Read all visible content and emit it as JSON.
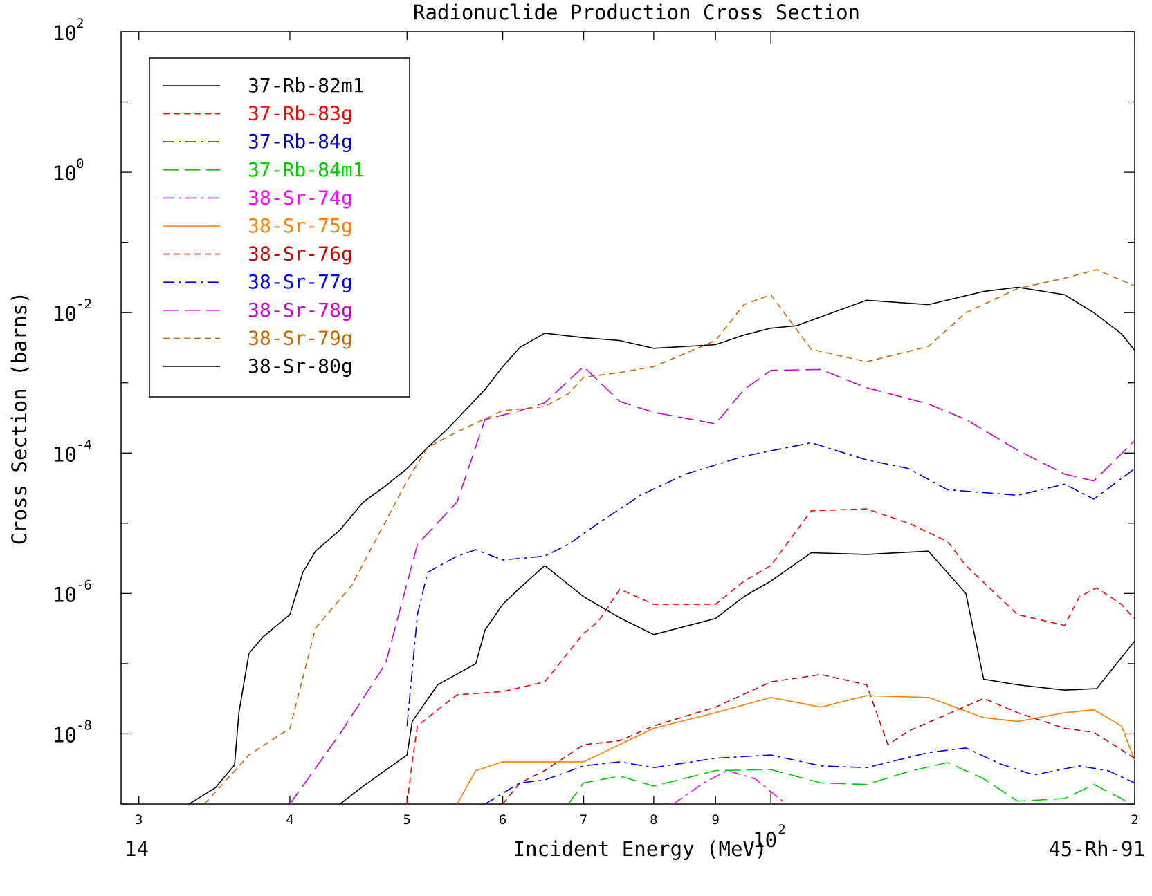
{
  "chart_data": {
    "type": "line",
    "title": "Radionuclide Production Cross Section",
    "xlabel": "Incident Energy (MeV)",
    "ylabel": "Cross Section (barns)",
    "x_scale": "log",
    "y_scale": "log",
    "xlim": [
      29,
      200
    ],
    "ylim": [
      1e-09,
      100
    ],
    "x_tick_labels": [
      {
        "value": 30,
        "label": "3"
      },
      {
        "value": 40,
        "label": "4"
      },
      {
        "value": 50,
        "label": "5"
      },
      {
        "value": 60,
        "label": "6"
      },
      {
        "value": 70,
        "label": "7"
      },
      {
        "value": 80,
        "label": "8"
      },
      {
        "value": 90,
        "label": "9"
      },
      {
        "value": 200,
        "label": "2"
      }
    ],
    "x_decade_label": {
      "value": 100,
      "base": "10",
      "exp": "2"
    },
    "y_tick_labels": [
      {
        "value": 100,
        "base": "10",
        "exp": "2"
      },
      {
        "value": 1,
        "base": "10",
        "exp": "0"
      },
      {
        "value": 0.01,
        "base": "10",
        "exp": "-2"
      },
      {
        "value": 0.0001,
        "base": "10",
        "exp": "-4"
      },
      {
        "value": 1e-06,
        "base": "10",
        "exp": "-6"
      },
      {
        "value": 1e-08,
        "base": "10",
        "exp": "-8"
      }
    ],
    "corner_left": "14",
    "corner_right": "45-Rh-91",
    "legend_position": "top-left",
    "series": [
      {
        "name": "37-Rb-82m1",
        "color": "#000000",
        "dash": "solid",
        "points": [
          [
            33,
            1e-09
          ],
          [
            34.7,
            1.7e-09
          ],
          [
            36,
            3.6e-09
          ],
          [
            36.3,
            2e-08
          ],
          [
            37,
            1.4e-07
          ],
          [
            38,
            2.4e-07
          ],
          [
            40,
            5e-07
          ],
          [
            41,
            2e-06
          ],
          [
            42,
            4e-06
          ],
          [
            44,
            8e-06
          ],
          [
            46,
            2e-05
          ],
          [
            48,
            3.4e-05
          ],
          [
            50,
            6e-05
          ],
          [
            52,
            0.00012
          ],
          [
            54,
            0.00022
          ],
          [
            58,
            0.0008
          ],
          [
            60,
            0.0017
          ],
          [
            62,
            0.0032
          ],
          [
            65,
            0.0051
          ],
          [
            70,
            0.0044
          ],
          [
            75,
            0.004
          ],
          [
            80,
            0.0031
          ],
          [
            90,
            0.0035
          ],
          [
            95,
            0.0048
          ],
          [
            100,
            0.006
          ],
          [
            105,
            0.0065
          ],
          [
            120,
            0.015
          ],
          [
            135,
            0.013
          ],
          [
            150,
            0.02
          ],
          [
            160,
            0.023
          ],
          [
            175,
            0.018
          ],
          [
            185,
            0.01
          ],
          [
            195,
            0.005
          ],
          [
            200,
            0.0029
          ]
        ]
      },
      {
        "name": "37-Rb-83g",
        "color": "#ff0000",
        "dash": "dash",
        "points": [
          [
            50,
            1e-09
          ],
          [
            50.5,
            4e-09
          ],
          [
            51,
            1.3e-08
          ],
          [
            53,
            2.2e-08
          ],
          [
            55,
            3.6e-08
          ],
          [
            60,
            4e-08
          ],
          [
            65,
            5.5e-08
          ],
          [
            70,
            2.7e-07
          ],
          [
            72,
            4e-07
          ],
          [
            75,
            1.15e-06
          ],
          [
            80,
            7e-07
          ],
          [
            90,
            7e-07
          ],
          [
            95,
            1.5e-06
          ],
          [
            100,
            2.5e-06
          ],
          [
            108,
            1.5e-05
          ],
          [
            120,
            1.6e-05
          ],
          [
            130,
            1e-05
          ],
          [
            140,
            5.5e-06
          ],
          [
            145,
            2.5e-06
          ],
          [
            160,
            5e-07
          ],
          [
            175,
            3.5e-07
          ],
          [
            180,
            9e-07
          ],
          [
            186,
            1.2e-06
          ],
          [
            195,
            7e-07
          ],
          [
            200,
            4.3e-07
          ]
        ]
      },
      {
        "name": "37-Rb-84g",
        "color": "#0000cc",
        "dash": "dashdot",
        "points": [
          [
            50,
            1.3e-08
          ],
          [
            51,
            5e-07
          ],
          [
            52,
            2e-06
          ],
          [
            55,
            3.4e-06
          ],
          [
            57,
            4.2e-06
          ],
          [
            60,
            3e-06
          ],
          [
            65,
            3.4e-06
          ],
          [
            68,
            5e-06
          ],
          [
            72,
            1e-05
          ],
          [
            78,
            2.5e-05
          ],
          [
            85,
            5e-05
          ],
          [
            95,
            9e-05
          ],
          [
            108,
            0.00014
          ],
          [
            120,
            8e-05
          ],
          [
            130,
            6e-05
          ],
          [
            140,
            3e-05
          ],
          [
            160,
            2.5e-05
          ],
          [
            175,
            3.6e-05
          ],
          [
            185,
            2.2e-05
          ],
          [
            200,
            6e-05
          ]
        ]
      },
      {
        "name": "37-Rb-84m1",
        "color": "#00cc00",
        "dash": "longdash",
        "points": [
          [
            68,
            1e-09
          ],
          [
            70,
            2e-09
          ],
          [
            75,
            2.5e-09
          ],
          [
            80,
            1.8e-09
          ],
          [
            90,
            3e-09
          ],
          [
            100,
            3.1e-09
          ],
          [
            110,
            2e-09
          ],
          [
            120,
            1.9e-09
          ],
          [
            130,
            2.9e-09
          ],
          [
            140,
            3.9e-09
          ],
          [
            150,
            2.3e-09
          ],
          [
            160,
            1.1e-09
          ],
          [
            175,
            1.2e-09
          ],
          [
            185,
            1.9e-09
          ],
          [
            195,
            1.2e-09
          ],
          [
            200,
            9e-10
          ]
        ]
      },
      {
        "name": "38-Sr-74g",
        "color": "#ff00ff",
        "dash": "dashdot",
        "points": [
          [
            83,
            1e-09
          ],
          [
            88,
            2e-09
          ],
          [
            92,
            3e-09
          ],
          [
            97,
            2.3e-09
          ],
          [
            100,
            1.5e-09
          ],
          [
            103,
            1e-09
          ]
        ]
      },
      {
        "name": "38-Sr-75g",
        "color": "#ff8000",
        "dash": "solid",
        "points": [
          [
            55,
            1e-09
          ],
          [
            57,
            3e-09
          ],
          [
            60,
            4e-09
          ],
          [
            65,
            4e-09
          ],
          [
            70,
            4e-09
          ],
          [
            80,
            1.2e-08
          ],
          [
            90,
            2e-08
          ],
          [
            100,
            3.3e-08
          ],
          [
            110,
            2.4e-08
          ],
          [
            120,
            3.5e-08
          ],
          [
            135,
            3.3e-08
          ],
          [
            150,
            1.7e-08
          ],
          [
            160,
            1.5e-08
          ],
          [
            175,
            2e-08
          ],
          [
            185,
            2.2e-08
          ],
          [
            195,
            1.3e-08
          ],
          [
            200,
            4.2e-09
          ]
        ]
      },
      {
        "name": "38-Sr-76g",
        "color": "#cc0000",
        "dash": "dash",
        "points": [
          [
            60,
            1e-09
          ],
          [
            62,
            2e-09
          ],
          [
            65,
            3e-09
          ],
          [
            70,
            7e-09
          ],
          [
            75,
            8e-09
          ],
          [
            80,
            1.3e-08
          ],
          [
            90,
            2.4e-08
          ],
          [
            100,
            5.5e-08
          ],
          [
            110,
            7e-08
          ],
          [
            120,
            5e-08
          ],
          [
            125,
            7e-09
          ],
          [
            130,
            1.1e-08
          ],
          [
            140,
            1.9e-08
          ],
          [
            150,
            3.2e-08
          ],
          [
            160,
            2e-08
          ],
          [
            175,
            1.2e-08
          ],
          [
            185,
            1.05e-08
          ],
          [
            200,
            4.5e-09
          ]
        ]
      },
      {
        "name": "38-Sr-77g",
        "color": "#0000ff",
        "dash": "dashdot",
        "points": [
          [
            58,
            1e-09
          ],
          [
            62,
            2e-09
          ],
          [
            65,
            2.2e-09
          ],
          [
            70,
            3.5e-09
          ],
          [
            75,
            4e-09
          ],
          [
            80,
            3.3e-09
          ],
          [
            90,
            4.5e-09
          ],
          [
            100,
            5e-09
          ],
          [
            110,
            3.5e-09
          ],
          [
            120,
            3.3e-09
          ],
          [
            135,
            5.4e-09
          ],
          [
            145,
            6.3e-09
          ],
          [
            155,
            3.7e-09
          ],
          [
            165,
            2.6e-09
          ],
          [
            180,
            3.5e-09
          ],
          [
            190,
            3e-09
          ],
          [
            200,
            2e-09
          ]
        ]
      },
      {
        "name": "38-Sr-78g",
        "color": "#cc00cc",
        "dash": "longdash",
        "points": [
          [
            40,
            1e-09
          ],
          [
            44,
            1e-08
          ],
          [
            48,
            1e-07
          ],
          [
            51,
            5e-06
          ],
          [
            55,
            2e-05
          ],
          [
            58,
            0.0003
          ],
          [
            62,
            0.0004
          ],
          [
            65,
            0.00052
          ],
          [
            70,
            0.0017
          ],
          [
            75,
            0.00054
          ],
          [
            80,
            0.00038
          ],
          [
            90,
            0.00026
          ],
          [
            95,
            0.0008
          ],
          [
            100,
            0.0015
          ],
          [
            110,
            0.00155
          ],
          [
            120,
            0.00085
          ],
          [
            135,
            0.0005
          ],
          [
            145,
            0.0003
          ],
          [
            160,
            0.00011
          ],
          [
            175,
            5e-05
          ],
          [
            185,
            4e-05
          ],
          [
            200,
            0.00015
          ]
        ]
      },
      {
        "name": "38-Sr-79g",
        "color": "#cc6600",
        "dash": "dash",
        "points": [
          [
            34,
            1e-09
          ],
          [
            37,
            5e-09
          ],
          [
            40,
            1.2e-08
          ],
          [
            42,
            3.2e-07
          ],
          [
            45,
            1.3e-06
          ],
          [
            50,
            4e-05
          ],
          [
            52,
            0.00012
          ],
          [
            55,
            0.0002
          ],
          [
            60,
            0.0004
          ],
          [
            65,
            0.00046
          ],
          [
            68,
            0.0007
          ],
          [
            70,
            0.0012
          ],
          [
            75,
            0.0014
          ],
          [
            80,
            0.0017
          ],
          [
            90,
            0.004
          ],
          [
            95,
            0.013
          ],
          [
            100,
            0.018
          ],
          [
            108,
            0.003
          ],
          [
            120,
            0.002
          ],
          [
            135,
            0.0033
          ],
          [
            145,
            0.01
          ],
          [
            160,
            0.022
          ],
          [
            175,
            0.031
          ],
          [
            186,
            0.041
          ],
          [
            200,
            0.024
          ]
        ]
      },
      {
        "name": "38-Sr-80g",
        "color": "#000000",
        "dash": "solid",
        "points": [
          [
            44,
            1e-09
          ],
          [
            46,
            1.8e-09
          ],
          [
            50,
            5e-09
          ],
          [
            50.5,
            1.5e-08
          ],
          [
            53,
            5e-08
          ],
          [
            57,
            1e-07
          ],
          [
            58,
            3e-07
          ],
          [
            60,
            7e-07
          ],
          [
            62,
            1.2e-06
          ],
          [
            65,
            2.5e-06
          ],
          [
            70,
            9e-07
          ],
          [
            75,
            4.5e-07
          ],
          [
            80,
            2.6e-07
          ],
          [
            90,
            4.4e-07
          ],
          [
            95,
            9e-07
          ],
          [
            100,
            1.5e-06
          ],
          [
            108,
            3.8e-06
          ],
          [
            120,
            3.6e-06
          ],
          [
            135,
            4e-06
          ],
          [
            145,
            1e-06
          ],
          [
            150,
            6e-08
          ],
          [
            160,
            5e-08
          ],
          [
            175,
            4.2e-08
          ],
          [
            186,
            4.4e-08
          ],
          [
            200,
            2.1e-07
          ]
        ]
      }
    ]
  }
}
